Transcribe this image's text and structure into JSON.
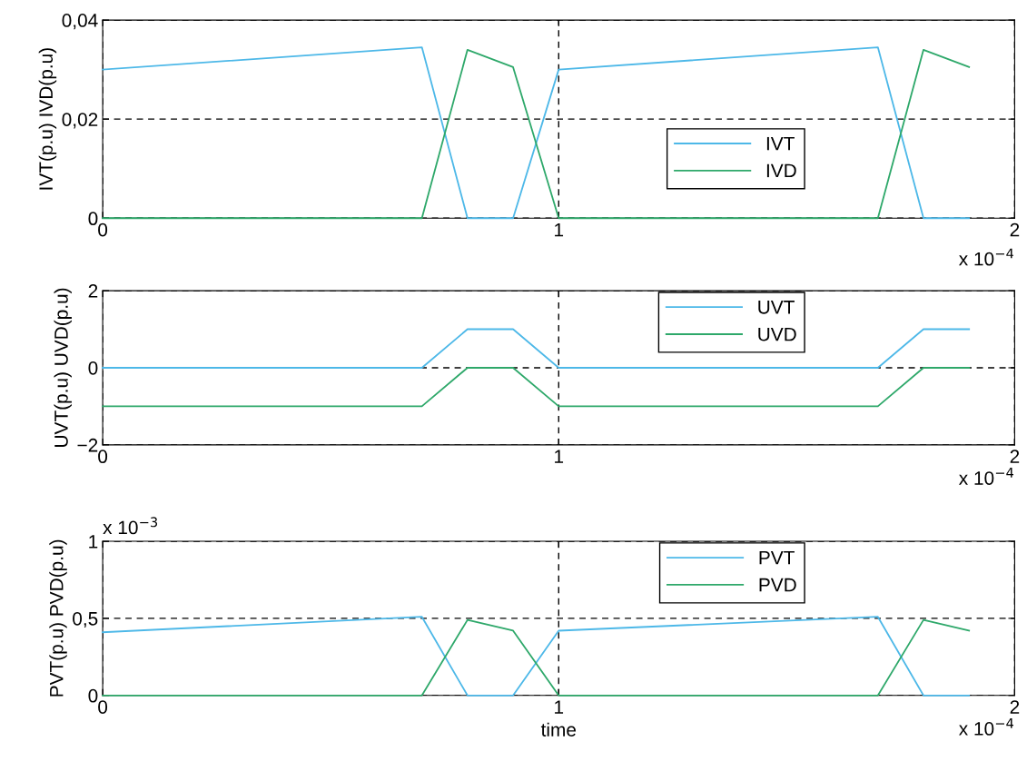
{
  "chart_data": [
    {
      "type": "line",
      "ylabel": "IVT(p.u) IVD(p.u)",
      "x": [
        0,
        0.7,
        0.8,
        0.9,
        1.0,
        1.7,
        1.8,
        1.9
      ],
      "series": [
        {
          "name": "IVT",
          "color": "#4db8e8",
          "values": [
            0.03,
            0.0345,
            0,
            0,
            0.03,
            0.0345,
            0,
            0
          ]
        },
        {
          "name": "IVD",
          "color": "#2ea86a",
          "values": [
            0,
            0,
            0.034,
            0.0305,
            0,
            0,
            0.034,
            0.0305
          ]
        }
      ],
      "xlim": [
        0,
        2
      ],
      "xticks": [
        0,
        1,
        2
      ],
      "ylim": [
        0,
        0.04
      ],
      "yticks": [
        0,
        {
          "value": 0.02,
          "label": "0,02"
        },
        {
          "value": 0.04,
          "label": "0,04"
        }
      ],
      "grid": true,
      "legend": "right",
      "annotations": [
        "x 10$^{−4}$"
      ]
    },
    {
      "type": "line",
      "ylabel": "UVT(p.u) UVD(p.u)",
      "x": [
        0,
        0.7,
        0.8,
        0.9,
        1.0,
        1.7,
        1.8,
        1.9
      ],
      "series": [
        {
          "name": "UVT",
          "color": "#4db8e8",
          "values": [
            0,
            0,
            1,
            1,
            0,
            0,
            1,
            1
          ]
        },
        {
          "name": "UVD",
          "color": "#2ea86a",
          "values": [
            -1,
            -1,
            0,
            0,
            -1,
            -1,
            0,
            0
          ]
        }
      ],
      "xlim": [
        0,
        2
      ],
      "xticks": [
        0,
        1,
        2
      ],
      "ylim": [
        -2,
        2
      ],
      "yticks": [
        {
          "value": -2,
          "label": "−2"
        },
        0,
        2
      ],
      "grid": true,
      "legend": "top right",
      "annotations": [
        "x 10$^{−4}$"
      ]
    },
    {
      "type": "line",
      "ylabel": "PVT(p.u) PVD(p.u)",
      "xlabel": "time",
      "x": [
        0,
        0.7,
        0.8,
        0.9,
        1.0,
        1.7,
        1.8,
        1.9
      ],
      "series": [
        {
          "name": "PVT",
          "color": "#4db8e8",
          "values": [
            0.41,
            0.51,
            0,
            0,
            0.42,
            0.51,
            0,
            0
          ]
        },
        {
          "name": "PVD",
          "color": "#2ea86a",
          "values": [
            0,
            0,
            0.49,
            0.42,
            0,
            0,
            0.49,
            0.42
          ]
        }
      ],
      "xlim": [
        0,
        2
      ],
      "xticks": [
        0,
        1,
        2
      ],
      "ylim": [
        0,
        1
      ],
      "yticks": [
        0,
        {
          "value": 0.5,
          "label": "0,5"
        },
        1
      ],
      "grid": true,
      "legend": "top right",
      "annotations": [
        "x 10$^{−4}$",
        "x 10$^{−3}$"
      ]
    }
  ]
}
